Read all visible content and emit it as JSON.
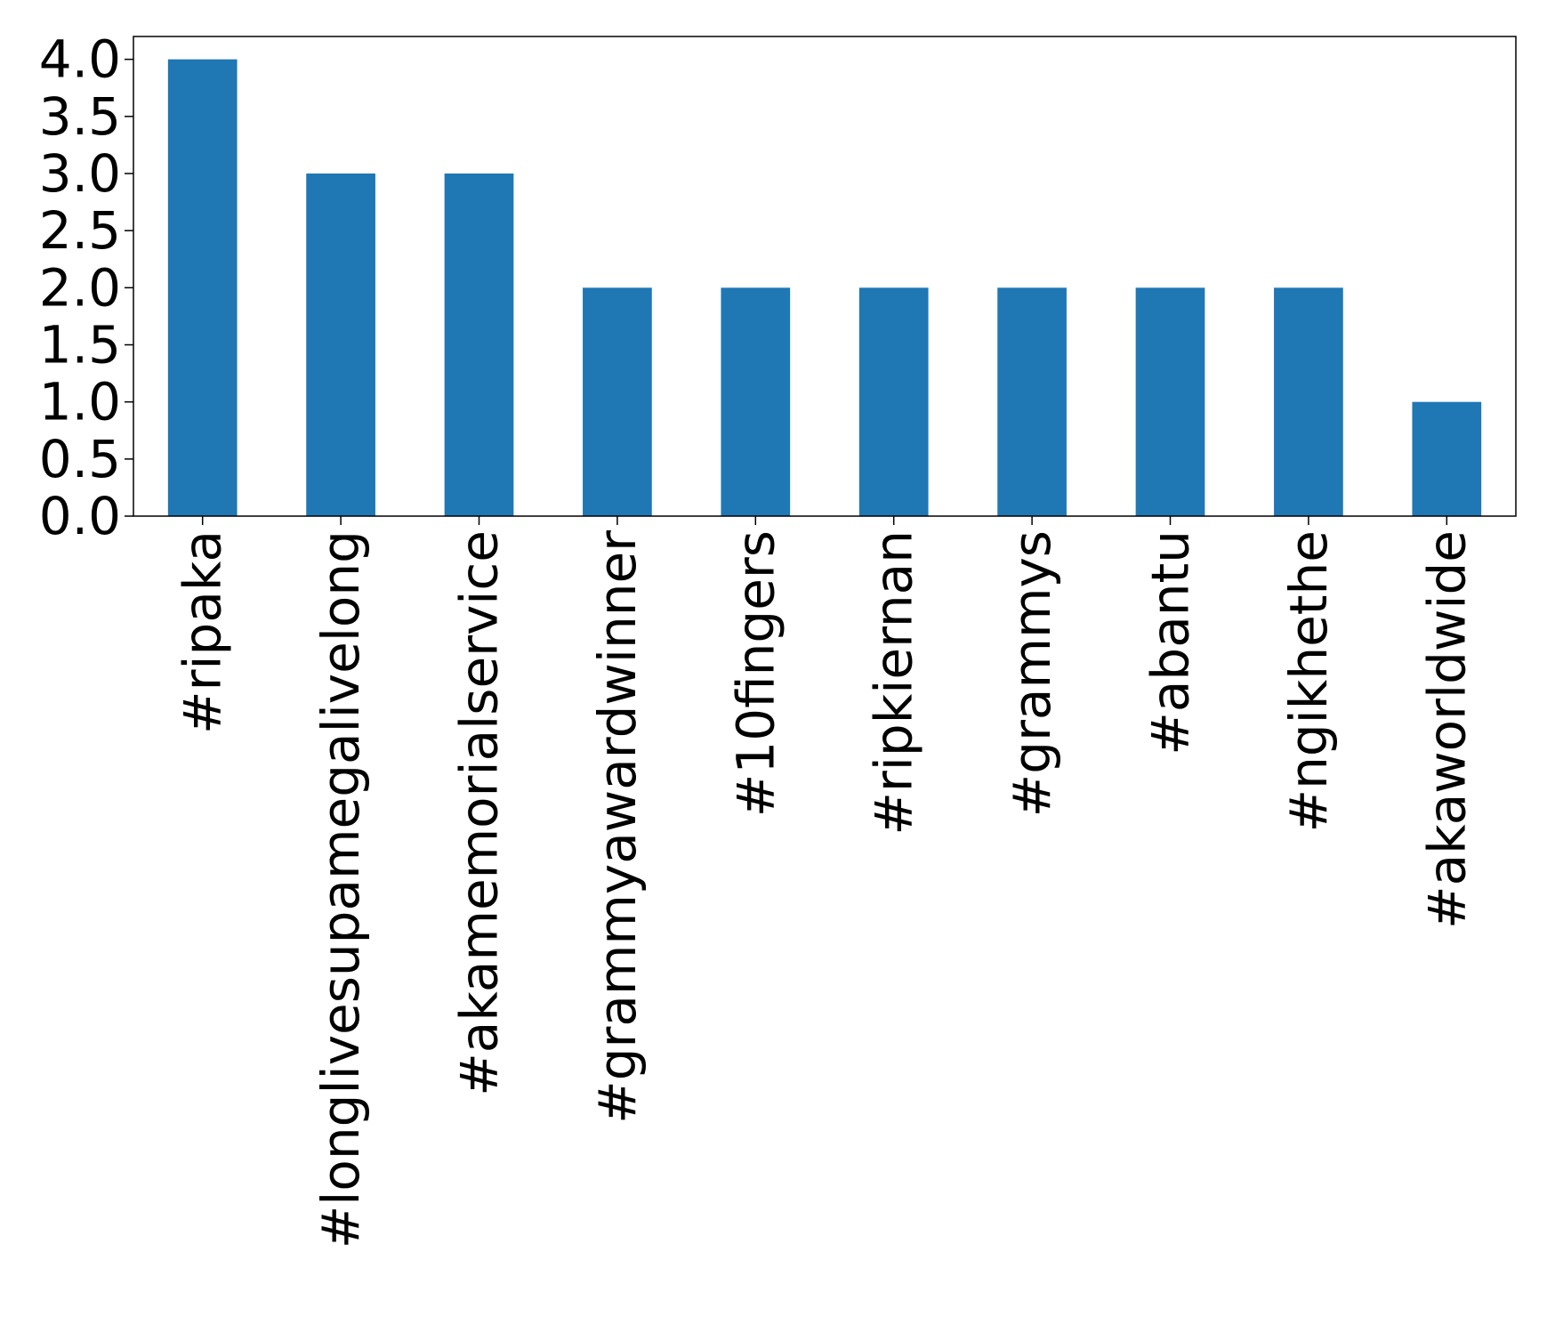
{
  "chart_data": {
    "type": "bar",
    "title": "",
    "xlabel": "",
    "ylabel": "",
    "categories": [
      "#ripaka",
      "#longlivesupamegalivelong",
      "#akamemorialservice",
      "#grammyawardwinner",
      "#10fingers",
      "#ripkiernan",
      "#grammys",
      "#abantu",
      "#ngikhethe",
      "#akaworldwide"
    ],
    "values": [
      4,
      3,
      3,
      2,
      2,
      2,
      2,
      2,
      2,
      1
    ],
    "ylim": [
      0,
      4.2
    ],
    "yticks": [
      "0.0",
      "0.5",
      "1.0",
      "1.5",
      "2.0",
      "2.5",
      "3.0",
      "3.5",
      "4.0"
    ],
    "grid": false,
    "legend": "none",
    "bar_color": "#1f77b4"
  }
}
